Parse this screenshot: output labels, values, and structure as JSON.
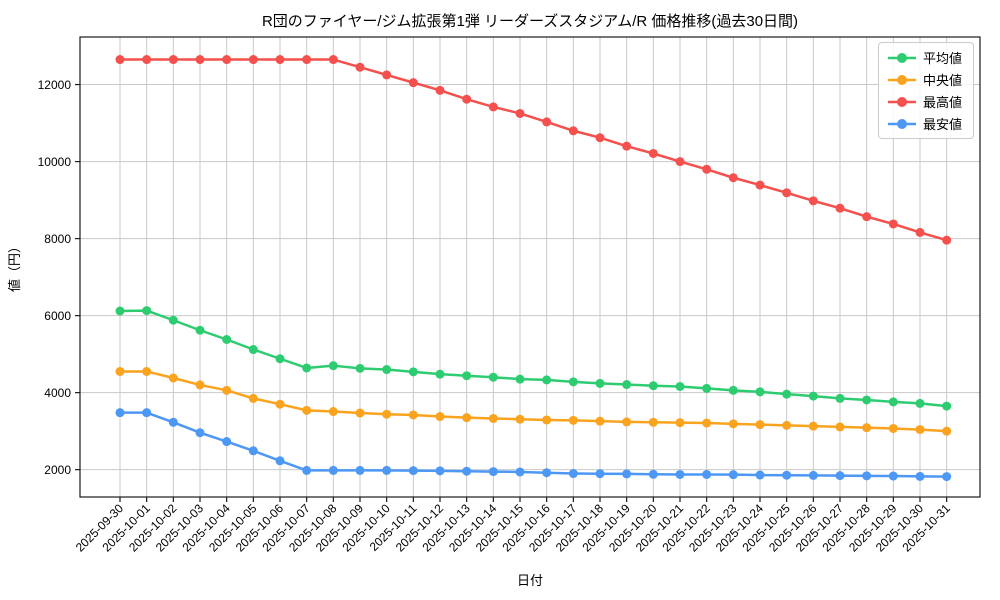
{
  "chart_data": {
    "type": "line",
    "title": "R団のファイヤー/ジム拡張第1弾 リーダーズスタジアム/R 価格推移(過去30日間)",
    "xlabel": "日付",
    "ylabel": "値（円）",
    "grid": true,
    "legend_position": "upper right",
    "ylim": [
      1290,
      13235
    ],
    "yticks": [
      2000,
      4000,
      6000,
      8000,
      10000,
      12000
    ],
    "x": [
      "2025-09-30",
      "2025-10-01",
      "2025-10-02",
      "2025-10-03",
      "2025-10-04",
      "2025-10-05",
      "2025-10-06",
      "2025-10-07",
      "2025-10-08",
      "2025-10-09",
      "2025-10-10",
      "2025-10-11",
      "2025-10-12",
      "2025-10-13",
      "2025-10-14",
      "2025-10-15",
      "2025-10-16",
      "2025-10-17",
      "2025-10-18",
      "2025-10-19",
      "2025-10-20",
      "2025-10-21",
      "2025-10-22",
      "2025-10-23",
      "2025-10-24",
      "2025-10-25",
      "2025-10-26",
      "2025-10-27",
      "2025-10-28",
      "2025-10-29",
      "2025-10-30",
      "2025-10-31"
    ],
    "series": [
      {
        "name": "平均値",
        "color": "#2ecc71",
        "values": [
          6120,
          6130,
          5880,
          5620,
          5380,
          5120,
          4880,
          4640,
          4700,
          4630,
          4600,
          4540,
          4480,
          4440,
          4400,
          4350,
          4330,
          4280,
          4240,
          4210,
          4180,
          4160,
          4110,
          4060,
          4020,
          3960,
          3910,
          3850,
          3810,
          3760,
          3720,
          3650
        ]
      },
      {
        "name": "中央値",
        "color": "#faa31e",
        "values": [
          4550,
          4550,
          4380,
          4200,
          4060,
          3850,
          3700,
          3540,
          3510,
          3470,
          3440,
          3420,
          3380,
          3350,
          3330,
          3310,
          3290,
          3280,
          3260,
          3240,
          3230,
          3220,
          3210,
          3190,
          3170,
          3150,
          3130,
          3110,
          3090,
          3070,
          3040,
          3000
        ]
      },
      {
        "name": "最高値",
        "color": "#f4504d",
        "values": [
          12650,
          12650,
          12650,
          12650,
          12650,
          12650,
          12650,
          12650,
          12650,
          12450,
          12250,
          12050,
          11850,
          11620,
          11420,
          11250,
          11030,
          10800,
          10620,
          10400,
          10210,
          10000,
          9800,
          9580,
          9390,
          9190,
          8980,
          8790,
          8570,
          8380,
          8160,
          7960
        ]
      },
      {
        "name": "最安値",
        "color": "#4d97f5",
        "values": [
          3480,
          3480,
          3230,
          2960,
          2730,
          2490,
          2230,
          1980,
          1980,
          1980,
          1980,
          1975,
          1970,
          1960,
          1950,
          1940,
          1920,
          1900,
          1895,
          1890,
          1880,
          1875,
          1875,
          1870,
          1860,
          1855,
          1850,
          1845,
          1840,
          1835,
          1825,
          1820
        ]
      }
    ],
    "styles": {
      "grid_color": "#c9c9c9",
      "frame_color": "#1a1a1a",
      "tick_font_px": 12,
      "marker_radius": 4.5,
      "line_width": 2.5
    }
  }
}
